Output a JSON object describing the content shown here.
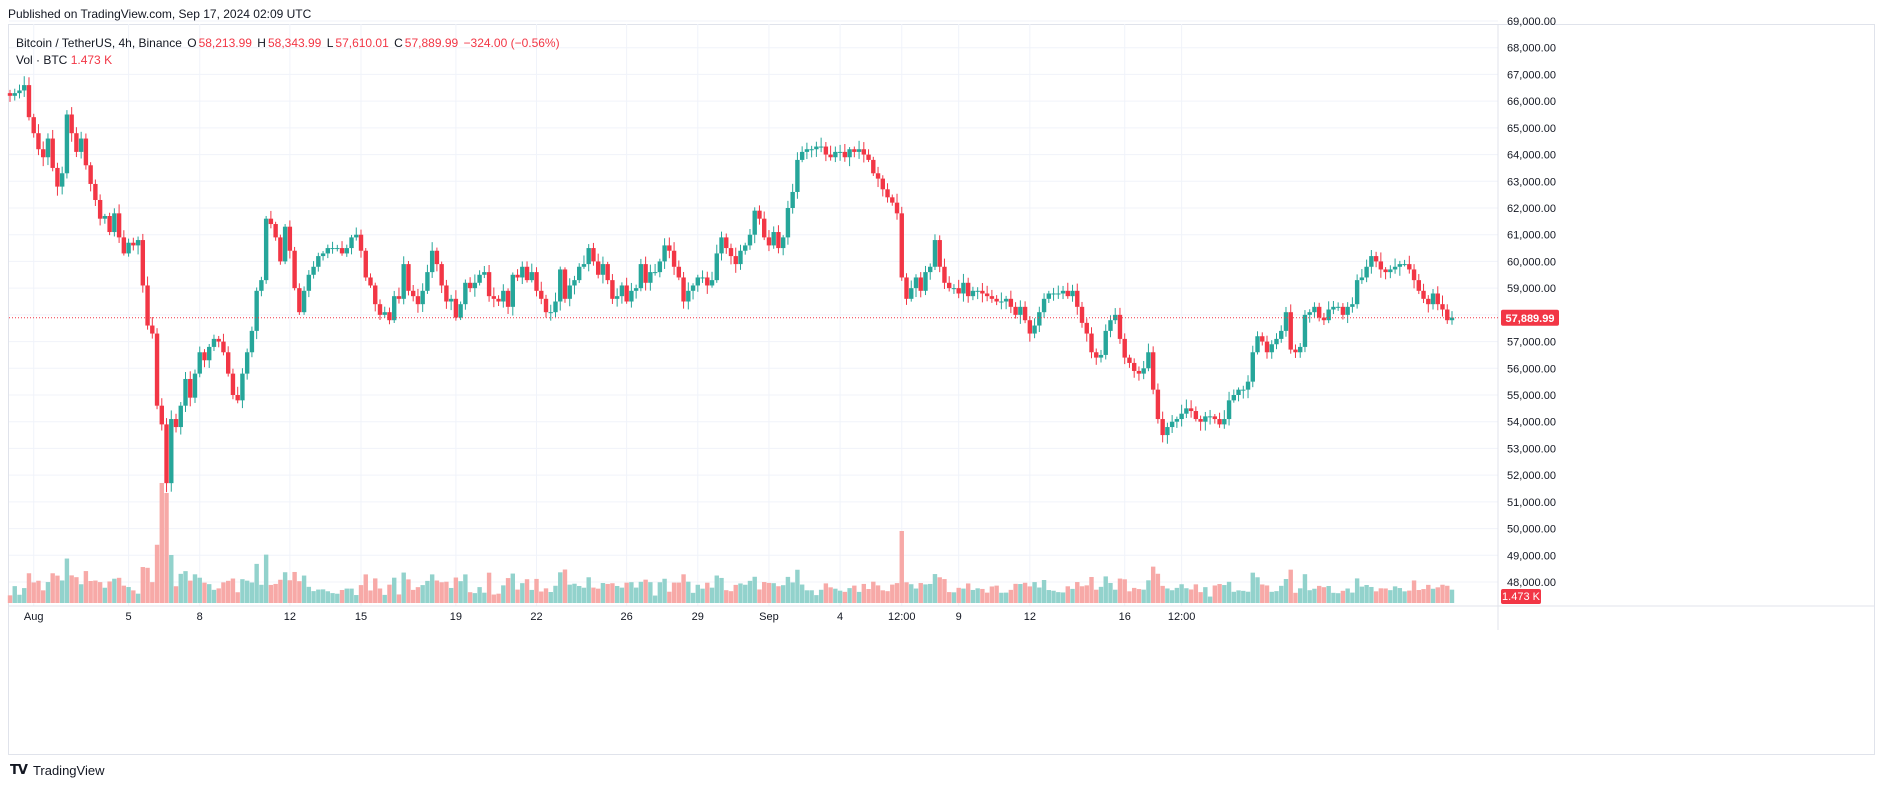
{
  "header": {
    "published": "Published on TradingView.com, Sep 17, 2024 02:09 UTC"
  },
  "legend": {
    "symbol": "Bitcoin / TetherUS, 4h, Binance",
    "open_label": "O",
    "open": "58,213.99",
    "high_label": "H",
    "high": "58,343.99",
    "low_label": "L",
    "low": "57,610.01",
    "close_label": "C",
    "close": "57,889.99",
    "change": "−324.00 (−0.56%)",
    "vol_label": "Vol · BTC",
    "vol_value": "1.473 K"
  },
  "footer": {
    "brand": "TradingView"
  },
  "colors": {
    "up": "#26a69a",
    "down": "#f23645",
    "up_vol": "#92d2cc",
    "down_vol": "#f7a9a7",
    "grid": "#f0f3fa",
    "last_price_bg": "#f23645"
  },
  "chart_data": {
    "type": "candlestick",
    "title": "Bitcoin / TetherUS, 4h, Binance",
    "last_price": 57889.99,
    "last_price_label": "57,889.99",
    "last_volume_label": "1.473 K",
    "ylim": [
      47500,
      69500
    ],
    "y_ticks": [
      48000,
      49000,
      50000,
      51000,
      52000,
      53000,
      54000,
      55000,
      56000,
      57000,
      58000,
      59000,
      60000,
      61000,
      62000,
      63000,
      64000,
      65000,
      66000,
      67000,
      68000,
      69000
    ],
    "y_tick_labels": [
      "48,000.00",
      "49,000.00",
      "50,000.00",
      "51,000.00",
      "52,000.00",
      "53,000.00",
      "54,000.00",
      "55,000.00",
      "56,000.00",
      "57,000.00",
      "58,000.00",
      "59,000.00",
      "60,000.00",
      "61,000.00",
      "62,000.00",
      "63,000.00",
      "64,000.00",
      "65,000.00",
      "66,000.00",
      "67,000.00",
      "68,000.00",
      "69,000.00"
    ],
    "x_ticks": [
      {
        "label": "Aug",
        "bar": 5
      },
      {
        "label": "5",
        "bar": 25
      },
      {
        "label": "8",
        "bar": 40
      },
      {
        "label": "12",
        "bar": 59
      },
      {
        "label": "15",
        "bar": 74
      },
      {
        "label": "19",
        "bar": 94
      },
      {
        "label": "22",
        "bar": 111
      },
      {
        "label": "26",
        "bar": 130
      },
      {
        "label": "29",
        "bar": 145
      },
      {
        "label": "Sep",
        "bar": 160
      },
      {
        "label": "4",
        "bar": 175
      },
      {
        "label": "12:00",
        "bar": 188
      },
      {
        "label": "9",
        "bar": 200
      },
      {
        "label": "12",
        "bar": 215
      },
      {
        "label": "16",
        "bar": 235
      },
      {
        "label": "12:00",
        "bar": 247
      }
    ],
    "closes": [
      66200,
      66300,
      66400,
      66600,
      65400,
      64800,
      64200,
      63900,
      64600,
      63500,
      62800,
      63300,
      65500,
      64800,
      64100,
      64600,
      63600,
      62900,
      62300,
      61600,
      61700,
      61100,
      61800,
      60900,
      60300,
      60700,
      60600,
      60800,
      59100,
      57600,
      57300,
      54600,
      53900,
      51700,
      54100,
      53800,
      54600,
      55600,
      54900,
      55800,
      56600,
      56300,
      56800,
      57100,
      57000,
      56600,
      55800,
      55000,
      54800,
      55800,
      56600,
      57400,
      58900,
      59300,
      61600,
      61400,
      60900,
      60000,
      61300,
      60400,
      59000,
      58100,
      58900,
      59500,
      59800,
      60200,
      60300,
      60500,
      60500,
      60500,
      60300,
      60500,
      60900,
      61000,
      60400,
      59400,
      59100,
      58400,
      58000,
      58100,
      57800,
      58700,
      58600,
      59900,
      58900,
      58700,
      58400,
      58900,
      59600,
      60400,
      59900,
      59100,
      58500,
      58600,
      57900,
      58400,
      59200,
      59000,
      59200,
      59500,
      59600,
      58700,
      58600,
      58500,
      58900,
      58300,
      59500,
      59400,
      59800,
      59300,
      59600,
      58900,
      58600,
      58100,
      58100,
      58500,
      59700,
      58600,
      59100,
      59300,
      59800,
      59900,
      60500,
      60000,
      59500,
      59900,
      59300,
      58600,
      58700,
      59100,
      58500,
      58900,
      59000,
      59900,
      59200,
      59600,
      59600,
      60000,
      60600,
      60400,
      59800,
      59400,
      58500,
      58900,
      59100,
      59400,
      59400,
      59100,
      59300,
      60300,
      60900,
      60500,
      60200,
      59900,
      60400,
      60600,
      61000,
      61900,
      61600,
      60900,
      60600,
      61100,
      60500,
      60900,
      62000,
      62600,
      63800,
      64100,
      64200,
      64200,
      64300,
      64300,
      64000,
      63900,
      64100,
      64100,
      63900,
      64200,
      64100,
      64200,
      64000,
      63800,
      63300,
      63100,
      62700,
      62400,
      62200,
      61800,
      59400,
      58600,
      59000,
      59400,
      58900,
      59600,
      59800,
      60800,
      59800,
      59200,
      59000,
      59000,
      58800,
      59200,
      58700,
      58900,
      58900,
      58800,
      58700,
      58600,
      58500,
      58500,
      58600,
      58300,
      58000,
      58300,
      57800,
      57300,
      57600,
      58100,
      58600,
      58800,
      58800,
      58800,
      58900,
      58700,
      58900,
      58300,
      57700,
      57300,
      56600,
      56400,
      56500,
      57400,
      57800,
      58000,
      57100,
      56400,
      56200,
      55900,
      55800,
      56000,
      56600,
      55200,
      54100,
      53500,
      53800,
      54000,
      54100,
      54300,
      54500,
      54400,
      54100,
      54000,
      54200,
      54200,
      54100,
      53900,
      54100,
      54800,
      55000,
      55200,
      55200,
      55500,
      56600,
      57200,
      57000,
      56600,
      56900,
      57100,
      57400,
      58100,
      56700,
      56600,
      56800,
      58000,
      58100,
      58300,
      57900,
      57800,
      58200,
      58300,
      58300,
      58000,
      58300,
      58400,
      59300,
      59400,
      59800,
      60200,
      60000,
      59700,
      59600,
      59700,
      59800,
      59900,
      59900,
      59700,
      59300,
      58900,
      58600,
      58400,
      58800,
      58400,
      58200,
      57800,
      57900
    ]
  }
}
